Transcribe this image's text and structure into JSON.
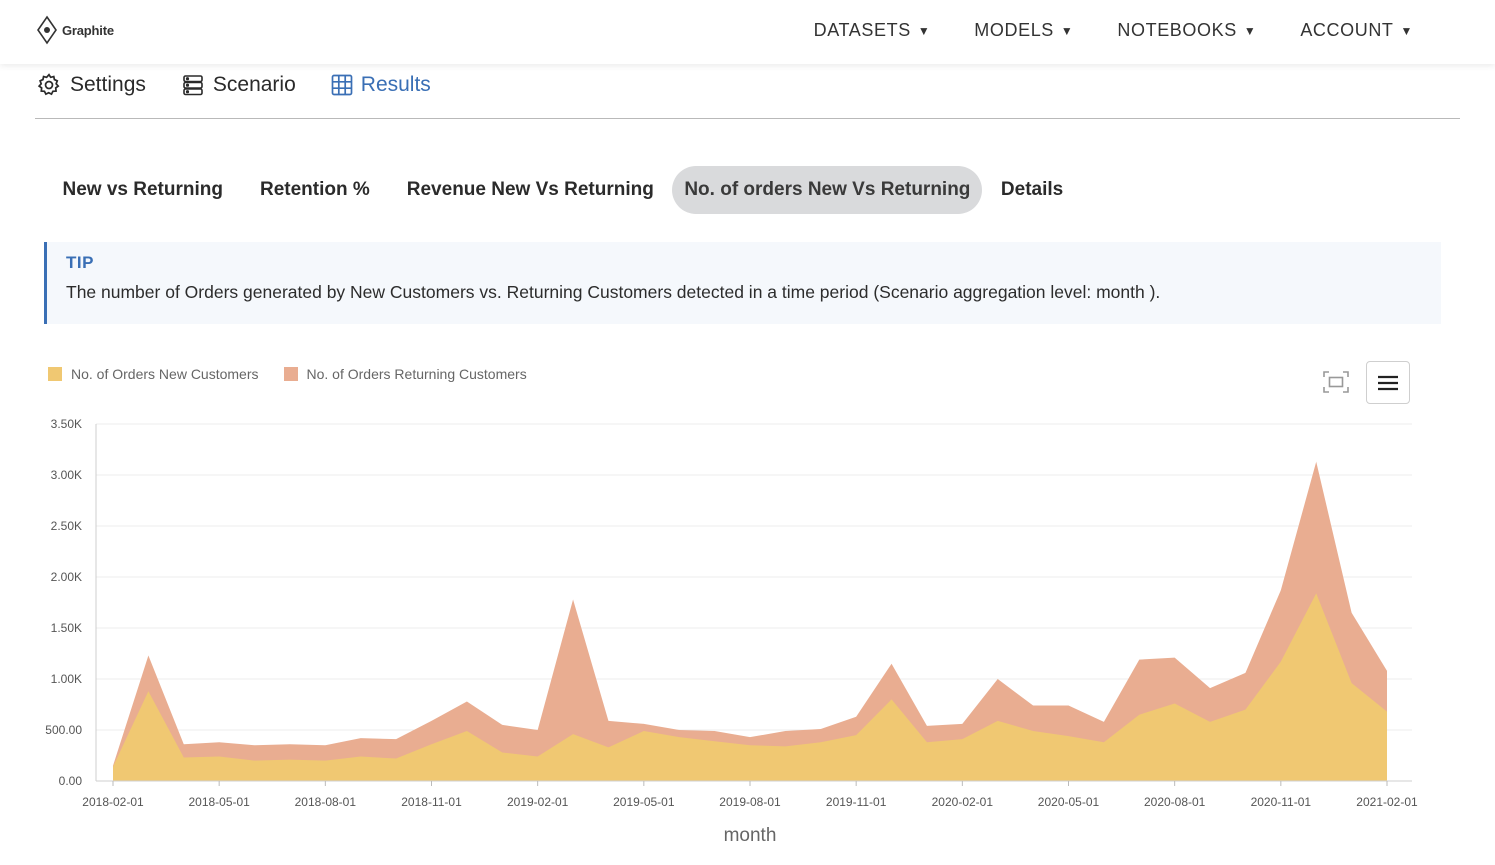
{
  "brand": {
    "name": "Graphite",
    "icon": "diamond-logo-icon"
  },
  "topnav": [
    {
      "label": "DATASETS"
    },
    {
      "label": "MODELS"
    },
    {
      "label": "NOTEBOOKS"
    },
    {
      "label": "ACCOUNT"
    }
  ],
  "subtabs": [
    {
      "label": "Settings",
      "icon": "gear-icon"
    },
    {
      "label": "Scenario",
      "icon": "database-icon"
    },
    {
      "label": "Results",
      "icon": "table-grid-icon",
      "active": true
    }
  ],
  "result_tabs": [
    {
      "label": "New vs Returning"
    },
    {
      "label": "Retention %"
    },
    {
      "label": "Revenue New Vs Returning"
    },
    {
      "label": "No. of orders New Vs Returning",
      "active": true
    },
    {
      "label": "Details"
    }
  ],
  "tip": {
    "label": "TIP",
    "text": "The number of Orders generated by New Customers vs. Returning Customers detected in a time period (Scenario aggregation level: month )."
  },
  "toolbar": {
    "zoom_icon": "fullscreen-icon",
    "menu_icon": "hamburger-menu-icon"
  },
  "colors": {
    "accent": "#3a6fb5",
    "new_customers": "#f0c872",
    "returning_customers": "#e9ad91"
  },
  "chart_data": {
    "type": "area",
    "stacked": true,
    "xlabel": "month",
    "ylabel": "",
    "ylim": [
      0,
      3500
    ],
    "yticks": [
      "0.00",
      "500.00",
      "1.00K",
      "1.50K",
      "2.00K",
      "2.50K",
      "3.00K",
      "3.50K"
    ],
    "xticks": [
      "2018-02-01",
      "2018-05-01",
      "2018-08-01",
      "2018-11-01",
      "2019-02-01",
      "2019-05-01",
      "2019-08-01",
      "2019-11-01",
      "2020-02-01",
      "2020-05-01",
      "2020-08-01",
      "2020-11-01",
      "2021-02-01"
    ],
    "legend_position": "top-left",
    "grid": true,
    "x": [
      "2018-02-01",
      "2018-03-01",
      "2018-04-01",
      "2018-05-01",
      "2018-06-01",
      "2018-07-01",
      "2018-08-01",
      "2018-09-01",
      "2018-10-01",
      "2018-11-01",
      "2018-12-01",
      "2019-01-01",
      "2019-02-01",
      "2019-03-01",
      "2019-04-01",
      "2019-05-01",
      "2019-06-01",
      "2019-07-01",
      "2019-08-01",
      "2019-09-01",
      "2019-10-01",
      "2019-11-01",
      "2019-12-01",
      "2020-01-01",
      "2020-02-01",
      "2020-03-01",
      "2020-04-01",
      "2020-05-01",
      "2020-06-01",
      "2020-07-01",
      "2020-08-01",
      "2020-09-01",
      "2020-10-01",
      "2020-11-01",
      "2020-12-01",
      "2021-01-01",
      "2021-02-01"
    ],
    "series": [
      {
        "name": "No. of Orders New Customers",
        "values": [
          140,
          880,
          230,
          240,
          200,
          210,
          200,
          240,
          220,
          360,
          490,
          280,
          240,
          460,
          330,
          490,
          430,
          390,
          350,
          340,
          380,
          450,
          800,
          380,
          410,
          590,
          490,
          440,
          380,
          650,
          760,
          580,
          700,
          1170,
          1840,
          960,
          680
        ]
      },
      {
        "name": "No. of Orders Returning Customers",
        "values": [
          10,
          350,
          130,
          140,
          150,
          150,
          150,
          180,
          190,
          230,
          290,
          270,
          260,
          1320,
          260,
          70,
          70,
          100,
          80,
          150,
          130,
          180,
          350,
          160,
          150,
          410,
          250,
          300,
          200,
          540,
          450,
          330,
          360,
          700,
          1290,
          690,
          400
        ]
      }
    ]
  }
}
